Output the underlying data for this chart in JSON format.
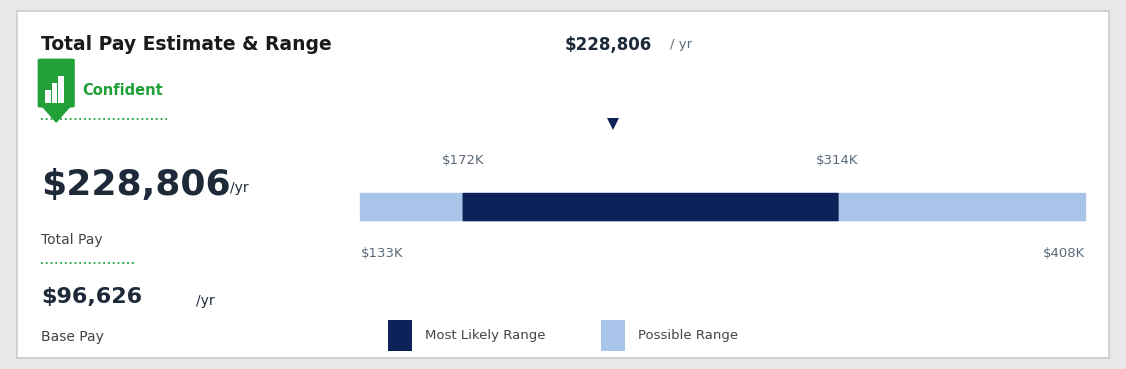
{
  "title": "Total Pay Estimate & Range",
  "confident_label": "Confident",
  "total_pay_label": "Total Pay",
  "total_pay_value": "$228,806",
  "total_pay_unit": "/yr",
  "base_pay_label": "Base Pay",
  "base_pay_value": "$96,626",
  "base_pay_unit": "/yr",
  "bar_min": 133000,
  "bar_max": 408000,
  "possible_range_min": 133000,
  "possible_range_max": 408000,
  "most_likely_min": 172000,
  "most_likely_max": 314000,
  "median_value": 228806,
  "label_min": "$133K",
  "label_max": "$408K",
  "label_likely_min": "$172K",
  "label_likely_max": "$314K",
  "label_median": "$228,806",
  "label_median_unit": "/ yr",
  "color_most_likely": "#0d2259",
  "color_possible": "#a8c4e8",
  "color_green": "#21a038",
  "color_confident_text": "#21a038",
  "color_title": "#1a1a1a",
  "color_pay_value": "#1e2a3a",
  "color_pay_label": "#444444",
  "color_axis_label": "#5a6a7a",
  "background_color": "#e8e8e8",
  "panel_background": "#ffffff",
  "legend_label_most_likely": "Most Likely Range",
  "legend_label_possible": "Possible Range"
}
